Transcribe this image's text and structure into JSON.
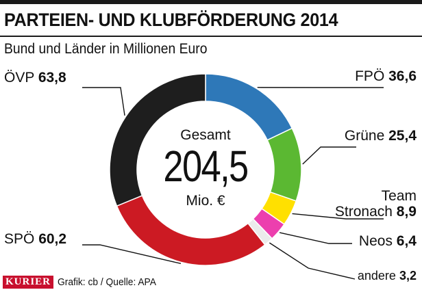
{
  "header": {
    "title": "PARTEIEN- UND KLUBFÖRDERUNG 2014",
    "subtitle": "Bund und Länder in Millionen Euro"
  },
  "chart_data": {
    "type": "pie",
    "variant": "donut",
    "title": "PARTEIEN- UND KLUBFÖRDERUNG 2014",
    "subtitle": "Bund und Länder in Millionen Euro",
    "unit": "Mio. €",
    "total": {
      "label": "Gesamt",
      "value_text": "204,5",
      "value": 204.5,
      "unit_label": "Mio. €"
    },
    "slices": [
      {
        "name": "FPÖ",
        "value": 36.6,
        "value_text": "36,6",
        "color": "#2e78b8"
      },
      {
        "name": "Grüne",
        "value": 25.4,
        "value_text": "25,4",
        "color": "#5bb832"
      },
      {
        "name": "Team Stronach",
        "name_lines": [
          "Team",
          "Stronach"
        ],
        "value": 8.9,
        "value_text": "8,9",
        "color": "#ffe000"
      },
      {
        "name": "Neos",
        "value": 6.4,
        "value_text": "6,4",
        "color": "#ec3fae"
      },
      {
        "name": "andere",
        "value": 3.2,
        "value_text": "3,2",
        "color": "#ebebeb"
      },
      {
        "name": "SPÖ",
        "value": 60.2,
        "value_text": "60,2",
        "color": "#cc1a23"
      },
      {
        "name": "ÖVP",
        "value": 63.8,
        "value_text": "63,8",
        "color": "#1e1e1e"
      }
    ],
    "start_angle_deg": 0,
    "direction": "clockwise"
  },
  "footer": {
    "logo_text": "KURIER",
    "credit": "Grafik: cb / Quelle: APA",
    "logo_color": "#c8102e"
  }
}
